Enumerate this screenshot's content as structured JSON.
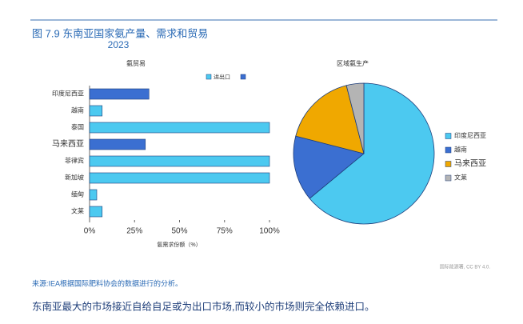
{
  "figure": {
    "title": "图 7.9 东南亚国家氨产量、需求和贸易",
    "year": "2023",
    "credit": "国际能源署, CC BY 4.0.",
    "source": "来源:IEA根据国际肥料协会的数据进行的分析。",
    "caption": "东南亚最大的市场接近自给自足或为出口市场,而较小的市场则完全依赖进口。"
  },
  "chart_data": [
    {
      "type": "hbar",
      "title": "氨贸易",
      "x_label": "氨需求份额（%）",
      "categories": [
        "印度尼西亚",
        "越南",
        "泰国",
        "马来西亚",
        "菲律宾",
        "新加坡",
        "缅甸",
        "文莱"
      ],
      "series": [
        {
          "name": "进出口",
          "color": "#4cc9f0",
          "values": [
            null,
            7,
            100,
            null,
            100,
            100,
            4,
            7
          ]
        },
        {
          "color": "#3b6fd1",
          "values": [
            33,
            null,
            null,
            31,
            null,
            null,
            null,
            null
          ]
        }
      ],
      "xlim": [
        0,
        100
      ],
      "xticks": [
        {
          "value": 0,
          "label": "0%"
        },
        {
          "value": 25,
          "label": "25%"
        },
        {
          "value": 50,
          "label": "50%"
        },
        {
          "value": 75,
          "label": "75%"
        },
        {
          "value": 100,
          "label": "100%"
        }
      ]
    },
    {
      "type": "pie",
      "title": "区域氨生产",
      "categories": [
        "印度尼西亚",
        "越南",
        "马来西亚",
        "文莱"
      ],
      "values": [
        64,
        15,
        17,
        4
      ],
      "colors": [
        "#4cc9f0",
        "#3b6fd1",
        "#f0a800",
        "#b4b4b4"
      ]
    }
  ]
}
